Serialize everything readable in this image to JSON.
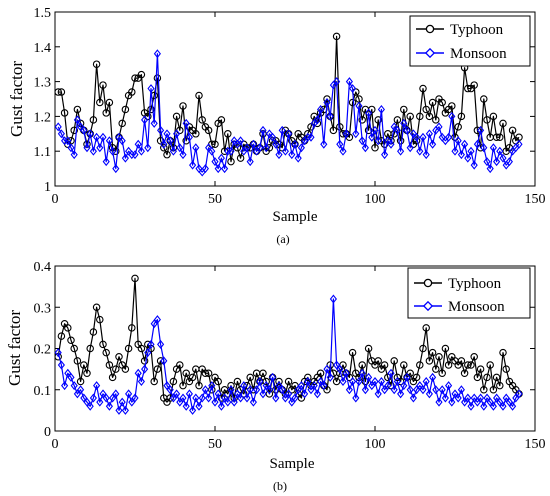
{
  "colors": {
    "typhoon": "#000000",
    "monsoon": "#0000ff"
  },
  "chart_data": [
    {
      "type": "line",
      "caption": "(a)",
      "xlabel": "Sample",
      "ylabel": "Gust factor",
      "xlim": [
        0,
        150
      ],
      "ylim": [
        1,
        1.5
      ],
      "xticks": [
        "0",
        "50",
        "100",
        "150"
      ],
      "yticks": [
        "1",
        "1.1",
        "1.2",
        "1.3",
        "1.4",
        "1.5"
      ],
      "legend_position": "top-right",
      "series": [
        {
          "name": "Typhoon",
          "marker": "circle",
          "color": "#000000",
          "values": [
            1.27,
            1.27,
            1.21,
            1.12,
            1.13,
            1.16,
            1.22,
            1.18,
            1.16,
            1.12,
            1.15,
            1.19,
            1.35,
            1.24,
            1.29,
            1.21,
            1.24,
            1.11,
            1.1,
            1.14,
            1.18,
            1.22,
            1.26,
            1.27,
            1.31,
            1.31,
            1.32,
            1.21,
            1.2,
            1.22,
            1.26,
            1.31,
            1.13,
            1.11,
            1.09,
            1.13,
            1.11,
            1.2,
            1.16,
            1.23,
            1.13,
            1.17,
            1.16,
            1.15,
            1.26,
            1.19,
            1.17,
            1.16,
            1.12,
            1.12,
            1.18,
            1.19,
            1.1,
            1.15,
            1.07,
            1.12,
            1.11,
            1.08,
            1.12,
            1.11,
            1.11,
            1.12,
            1.1,
            1.11,
            1.15,
            1.1,
            1.11,
            1.13,
            1.13,
            1.12,
            1.11,
            1.16,
            1.15,
            1.13,
            1.12,
            1.15,
            1.14,
            1.13,
            1.15,
            1.17,
            1.2,
            1.18,
            1.21,
            1.22,
            1.25,
            1.2,
            1.16,
            1.43,
            1.17,
            1.15,
            1.15,
            1.14,
            1.24,
            1.27,
            1.25,
            1.19,
            1.22,
            1.16,
            1.22,
            1.11,
            1.19,
            1.13,
            1.12,
            1.15,
            1.13,
            1.15,
            1.19,
            1.13,
            1.22,
            1.16,
            1.2,
            1.12,
            1.13,
            1.2,
            1.28,
            1.22,
            1.2,
            1.24,
            1.19,
            1.25,
            1.24,
            1.21,
            1.22,
            1.23,
            1.14,
            1.17,
            1.2,
            1.34,
            1.28,
            1.28,
            1.29,
            1.16,
            1.11,
            1.25,
            1.19,
            1.14,
            1.2,
            1.14,
            1.14,
            1.18,
            1.1,
            1.11,
            1.16,
            1.13,
            1.14
          ]
        },
        {
          "name": "Monsoon",
          "marker": "diamond",
          "color": "#0000ff",
          "values": [
            1.17,
            1.15,
            1.13,
            1.13,
            1.11,
            1.09,
            1.19,
            1.17,
            1.16,
            1.11,
            1.15,
            1.1,
            1.14,
            1.11,
            1.14,
            1.07,
            1.13,
            1.1,
            1.05,
            1.14,
            1.13,
            1.08,
            1.1,
            1.09,
            1.09,
            1.12,
            1.1,
            1.19,
            1.11,
            1.28,
            1.18,
            1.38,
            1.16,
            1.12,
            1.15,
            1.13,
            1.1,
            1.15,
            1.11,
            1.09,
            1.18,
            1.14,
            1.06,
            1.11,
            1.05,
            1.04,
            1.05,
            1.11,
            1.1,
            1.07,
            1.05,
            1.08,
            1.05,
            1.1,
            1.1,
            1.13,
            1.12,
            1.13,
            1.1,
            1.11,
            1.07,
            1.12,
            1.1,
            1.11,
            1.16,
            1.11,
            1.15,
            1.14,
            1.12,
            1.09,
            1.16,
            1.1,
            1.15,
            1.09,
            1.12,
            1.08,
            1.11,
            1.13,
            1.14,
            1.14,
            1.18,
            1.19,
            1.22,
            1.12,
            1.24,
            1.2,
            1.29,
            1.3,
            1.12,
            1.1,
            1.15,
            1.3,
            1.28,
            1.15,
            1.23,
            1.13,
            1.11,
            1.21,
            1.14,
            1.16,
            1.13,
            1.22,
            1.09,
            1.13,
            1.12,
            1.17,
            1.16,
            1.1,
            1.18,
            1.16,
            1.11,
            1.15,
            1.14,
            1.1,
            1.14,
            1.09,
            1.15,
            1.12,
            1.16,
            1.17,
            1.14,
            1.13,
            1.14,
            1.2,
            1.1,
            1.13,
            1.09,
            1.12,
            1.08,
            1.1,
            1.06,
            1.12,
            1.16,
            1.11,
            1.07,
            1.05,
            1.11,
            1.07,
            1.1,
            1.08,
            1.06,
            1.07,
            1.1,
            1.11,
            1.12
          ]
        }
      ]
    },
    {
      "type": "line",
      "caption": "(b)",
      "xlabel": "Sample",
      "ylabel": "Gust factor",
      "xlim": [
        0,
        150
      ],
      "ylim": [
        0,
        0.4
      ],
      "xticks": [
        "0",
        "50",
        "100",
        "150"
      ],
      "yticks": [
        "0",
        "0.1",
        "0.2",
        "0.3",
        "0.4"
      ],
      "legend_position": "top-right",
      "series": [
        {
          "name": "Typhoon",
          "marker": "circle",
          "color": "#000000",
          "values": [
            0.18,
            0.23,
            0.26,
            0.25,
            0.22,
            0.2,
            0.17,
            0.12,
            0.16,
            0.14,
            0.2,
            0.24,
            0.3,
            0.27,
            0.21,
            0.19,
            0.16,
            0.13,
            0.15,
            0.18,
            0.16,
            0.15,
            0.2,
            0.25,
            0.37,
            0.21,
            0.2,
            0.17,
            0.21,
            0.2,
            0.12,
            0.15,
            0.17,
            0.08,
            0.07,
            0.08,
            0.12,
            0.15,
            0.16,
            0.11,
            0.14,
            0.12,
            0.13,
            0.15,
            0.11,
            0.15,
            0.14,
            0.14,
            0.1,
            0.13,
            0.12,
            0.08,
            0.1,
            0.09,
            0.11,
            0.08,
            0.12,
            0.1,
            0.09,
            0.11,
            0.13,
            0.1,
            0.14,
            0.12,
            0.14,
            0.12,
            0.09,
            0.13,
            0.1,
            0.12,
            0.1,
            0.09,
            0.12,
            0.1,
            0.11,
            0.09,
            0.08,
            0.12,
            0.13,
            0.11,
            0.12,
            0.13,
            0.14,
            0.11,
            0.1,
            0.16,
            0.14,
            0.12,
            0.14,
            0.16,
            0.14,
            0.13,
            0.19,
            0.14,
            0.13,
            0.16,
            0.12,
            0.2,
            0.17,
            0.16,
            0.17,
            0.15,
            0.16,
            0.13,
            0.11,
            0.17,
            0.13,
            0.12,
            0.16,
            0.13,
            0.14,
            0.12,
            0.13,
            0.16,
            0.2,
            0.25,
            0.17,
            0.19,
            0.15,
            0.18,
            0.14,
            0.2,
            0.16,
            0.18,
            0.17,
            0.16,
            0.17,
            0.14,
            0.16,
            0.16,
            0.18,
            0.13,
            0.15,
            0.1,
            0.13,
            0.16,
            0.1,
            0.13,
            0.11,
            0.19,
            0.15,
            0.12,
            0.11,
            0.1,
            0.09
          ]
        },
        {
          "name": "Monsoon",
          "marker": "diamond",
          "color": "#0000ff",
          "values": [
            0.19,
            0.16,
            0.11,
            0.14,
            0.13,
            0.11,
            0.09,
            0.1,
            0.08,
            0.07,
            0.06,
            0.08,
            0.11,
            0.07,
            0.09,
            0.08,
            0.06,
            0.08,
            0.09,
            0.05,
            0.07,
            0.05,
            0.09,
            0.07,
            0.08,
            0.14,
            0.12,
            0.15,
            0.19,
            0.21,
            0.26,
            0.27,
            0.21,
            0.17,
            0.11,
            0.1,
            0.08,
            0.09,
            0.07,
            0.08,
            0.06,
            0.09,
            0.05,
            0.08,
            0.06,
            0.08,
            0.1,
            0.08,
            0.11,
            0.07,
            0.09,
            0.06,
            0.08,
            0.07,
            0.1,
            0.07,
            0.09,
            0.08,
            0.11,
            0.08,
            0.1,
            0.07,
            0.1,
            0.12,
            0.09,
            0.11,
            0.1,
            0.13,
            0.08,
            0.11,
            0.1,
            0.08,
            0.09,
            0.07,
            0.08,
            0.1,
            0.11,
            0.09,
            0.12,
            0.1,
            0.11,
            0.09,
            0.12,
            0.11,
            0.15,
            0.13,
            0.32,
            0.16,
            0.15,
            0.12,
            0.14,
            0.1,
            0.12,
            0.08,
            0.12,
            0.14,
            0.1,
            0.13,
            0.11,
            0.12,
            0.09,
            0.12,
            0.1,
            0.11,
            0.14,
            0.1,
            0.12,
            0.09,
            0.11,
            0.13,
            0.1,
            0.08,
            0.1,
            0.11,
            0.1,
            0.12,
            0.09,
            0.13,
            0.1,
            0.07,
            0.1,
            0.08,
            0.11,
            0.07,
            0.09,
            0.08,
            0.1,
            0.07,
            0.08,
            0.06,
            0.08,
            0.07,
            0.08,
            0.06,
            0.08,
            0.07,
            0.06,
            0.08,
            0.07,
            0.06,
            0.08,
            0.07,
            0.06,
            0.08,
            0.09
          ]
        }
      ]
    }
  ]
}
